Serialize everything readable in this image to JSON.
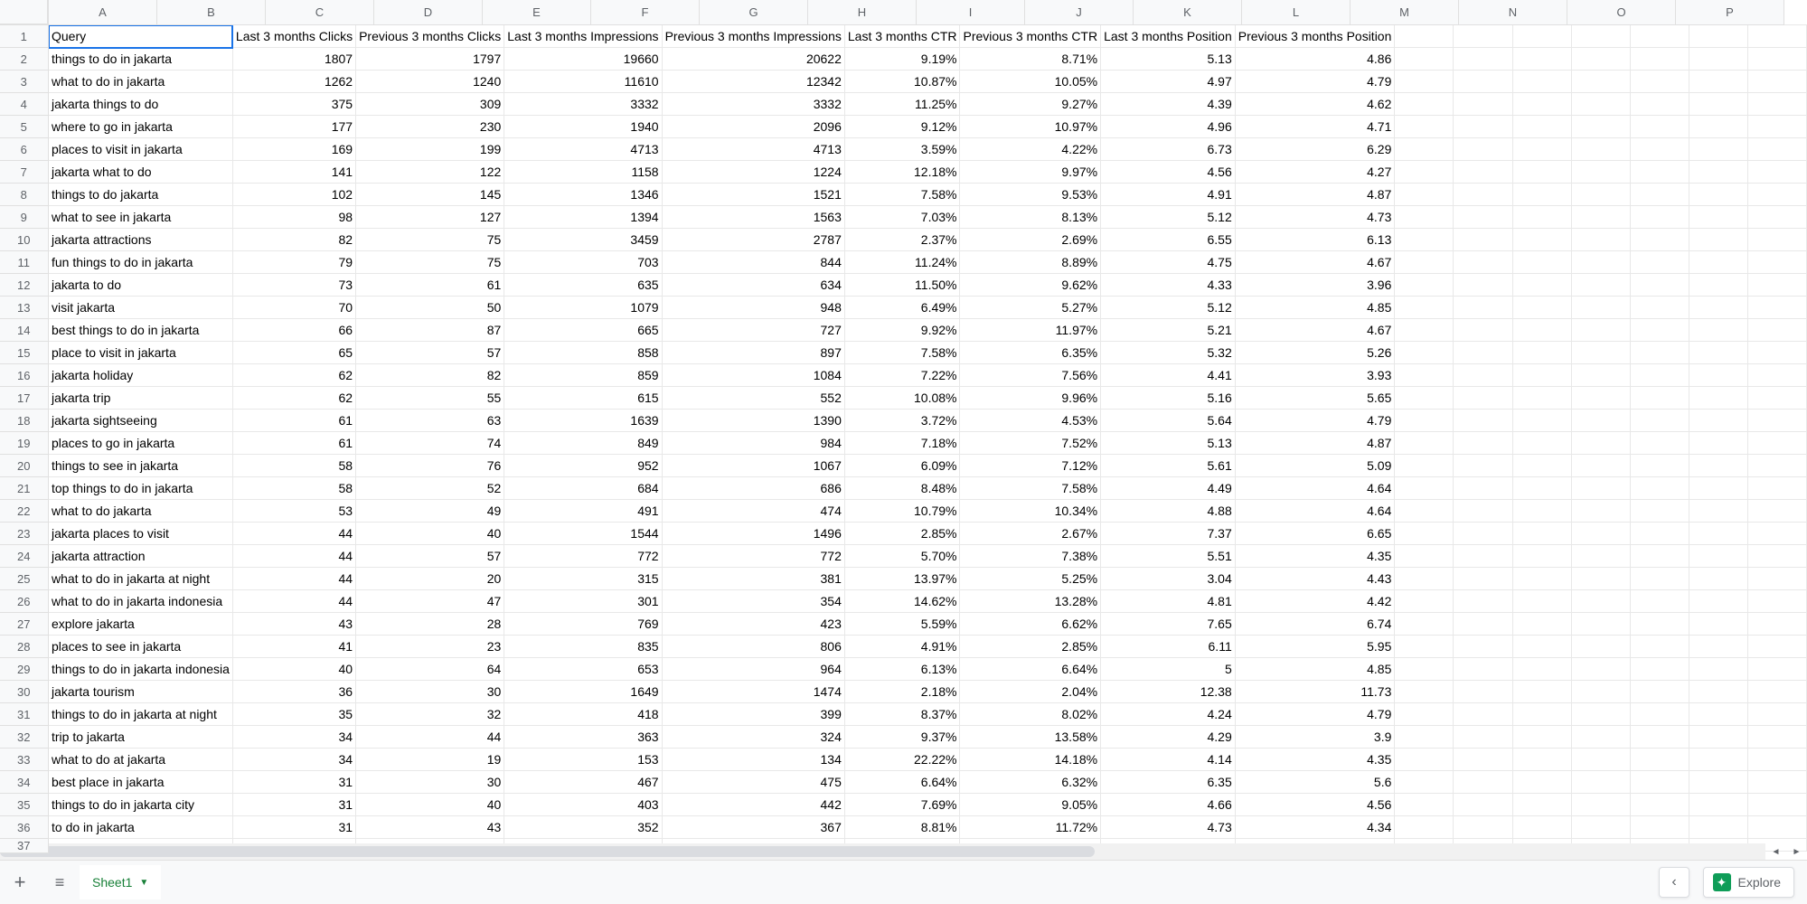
{
  "columns": [
    "A",
    "B",
    "C",
    "D",
    "E",
    "F",
    "G",
    "H",
    "I",
    "J",
    "K",
    "L",
    "M",
    "N",
    "O",
    "P"
  ],
  "headerRow": [
    "Query",
    "Last 3 months Clicks",
    "Previous 3 months Clicks",
    "Last 3 months Impressions",
    "Previous 3 months Impressions",
    "Last 3 months CTR",
    "Previous 3 months CTR",
    "Last 3 months Position",
    "Previous 3 months Position"
  ],
  "rows": [
    [
      "things to do in jakarta",
      1807,
      1797,
      19660,
      20622,
      "9.19%",
      "8.71%",
      5.13,
      4.86
    ],
    [
      "what to do in jakarta",
      1262,
      1240,
      11610,
      12342,
      "10.87%",
      "10.05%",
      4.97,
      4.79
    ],
    [
      "jakarta things to do",
      375,
      309,
      3332,
      3332,
      "11.25%",
      "9.27%",
      4.39,
      4.62
    ],
    [
      "where to go in jakarta",
      177,
      230,
      1940,
      2096,
      "9.12%",
      "10.97%",
      4.96,
      4.71
    ],
    [
      "places to visit in jakarta",
      169,
      199,
      4713,
      4713,
      "3.59%",
      "4.22%",
      6.73,
      6.29
    ],
    [
      "jakarta what to do",
      141,
      122,
      1158,
      1224,
      "12.18%",
      "9.97%",
      4.56,
      4.27
    ],
    [
      "things to do jakarta",
      102,
      145,
      1346,
      1521,
      "7.58%",
      "9.53%",
      4.91,
      4.87
    ],
    [
      "what to see in jakarta",
      98,
      127,
      1394,
      1563,
      "7.03%",
      "8.13%",
      5.12,
      4.73
    ],
    [
      "jakarta attractions",
      82,
      75,
      3459,
      2787,
      "2.37%",
      "2.69%",
      6.55,
      6.13
    ],
    [
      "fun things to do in jakarta",
      79,
      75,
      703,
      844,
      "11.24%",
      "8.89%",
      4.75,
      4.67
    ],
    [
      "jakarta to do",
      73,
      61,
      635,
      634,
      "11.50%",
      "9.62%",
      4.33,
      3.96
    ],
    [
      "visit jakarta",
      70,
      50,
      1079,
      948,
      "6.49%",
      "5.27%",
      5.12,
      4.85
    ],
    [
      "best things to do in jakarta",
      66,
      87,
      665,
      727,
      "9.92%",
      "11.97%",
      5.21,
      4.67
    ],
    [
      "place to visit in jakarta",
      65,
      57,
      858,
      897,
      "7.58%",
      "6.35%",
      5.32,
      5.26
    ],
    [
      "jakarta holiday",
      62,
      82,
      859,
      1084,
      "7.22%",
      "7.56%",
      4.41,
      3.93
    ],
    [
      "jakarta trip",
      62,
      55,
      615,
      552,
      "10.08%",
      "9.96%",
      5.16,
      5.65
    ],
    [
      "jakarta sightseeing",
      61,
      63,
      1639,
      1390,
      "3.72%",
      "4.53%",
      5.64,
      4.79
    ],
    [
      "places to go in jakarta",
      61,
      74,
      849,
      984,
      "7.18%",
      "7.52%",
      5.13,
      4.87
    ],
    [
      "things to see in jakarta",
      58,
      76,
      952,
      1067,
      "6.09%",
      "7.12%",
      5.61,
      5.09
    ],
    [
      "top things to do in jakarta",
      58,
      52,
      684,
      686,
      "8.48%",
      "7.58%",
      4.49,
      4.64
    ],
    [
      "what to do jakarta",
      53,
      49,
      491,
      474,
      "10.79%",
      "10.34%",
      4.88,
      4.64
    ],
    [
      "jakarta places to visit",
      44,
      40,
      1544,
      1496,
      "2.85%",
      "2.67%",
      7.37,
      6.65
    ],
    [
      "jakarta attraction",
      44,
      57,
      772,
      772,
      "5.70%",
      "7.38%",
      5.51,
      4.35
    ],
    [
      "what to do in jakarta at night",
      44,
      20,
      315,
      381,
      "13.97%",
      "5.25%",
      3.04,
      4.43
    ],
    [
      "what to do in jakarta indonesia",
      44,
      47,
      301,
      354,
      "14.62%",
      "13.28%",
      4.81,
      4.42
    ],
    [
      "explore jakarta",
      43,
      28,
      769,
      423,
      "5.59%",
      "6.62%",
      7.65,
      6.74
    ],
    [
      "places to see in jakarta",
      41,
      23,
      835,
      806,
      "4.91%",
      "2.85%",
      6.11,
      5.95
    ],
    [
      "things to do in jakarta indonesia",
      40,
      64,
      653,
      964,
      "6.13%",
      "6.64%",
      5,
      4.85
    ],
    [
      "jakarta tourism",
      36,
      30,
      1649,
      1474,
      "2.18%",
      "2.04%",
      12.38,
      11.73
    ],
    [
      "things to do in jakarta at night",
      35,
      32,
      418,
      399,
      "8.37%",
      "8.02%",
      4.24,
      4.79
    ],
    [
      "trip to jakarta",
      34,
      44,
      363,
      324,
      "9.37%",
      "13.58%",
      4.29,
      3.9
    ],
    [
      "what to do at jakarta",
      34,
      19,
      153,
      134,
      "22.22%",
      "14.18%",
      4.14,
      4.35
    ],
    [
      "best place in jakarta",
      31,
      30,
      467,
      475,
      "6.64%",
      "6.32%",
      6.35,
      5.6
    ],
    [
      "things to do in jakarta city",
      31,
      40,
      403,
      442,
      "7.69%",
      "9.05%",
      4.66,
      4.56
    ],
    [
      "to do in jakarta",
      31,
      43,
      352,
      367,
      "8.81%",
      "11.72%",
      4.73,
      4.34
    ]
  ],
  "sheetName": "Sheet1",
  "exploreLabel": "Explore",
  "colors": {
    "accent": "#1a73e8",
    "sheetTab": "#188038",
    "exploreIcon": "#0f9d58",
    "headerBg": "#f8f9fa",
    "border": "#e0e0e0"
  }
}
